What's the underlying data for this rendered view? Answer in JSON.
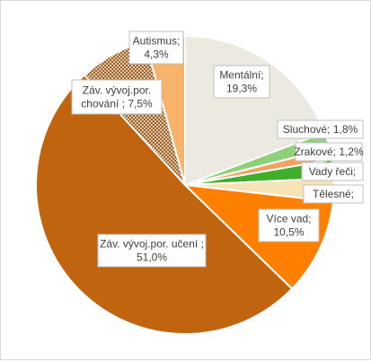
{
  "chart_data": {
    "type": "pie",
    "title": "",
    "slices": [
      {
        "category": "Mentální",
        "value": 19.3,
        "label_lines": [
          "Mentální;",
          "19,3%"
        ],
        "color": "#ece9e1"
      },
      {
        "category": "Sluchové",
        "value": 1.8,
        "label_lines": [
          "Sluchové; 1,8%"
        ],
        "color": "#8fd17a"
      },
      {
        "category": "Zrakové",
        "value": 1.2,
        "label_lines": [
          "Zrakové; 1,2%"
        ],
        "color": "#f4a261"
      },
      {
        "category": "Vady řeči",
        "value": 2.0,
        "label_lines": [
          "Vady řeči;"
        ],
        "color": "#3fae2a"
      },
      {
        "category": "Tělesné",
        "value": 2.5,
        "label_lines": [
          "Tělesné;"
        ],
        "color": "#f7e3b5"
      },
      {
        "category": "Více vad",
        "value": 10.5,
        "label_lines": [
          "Více vad;",
          "10,5%"
        ],
        "color": "#ff8000"
      },
      {
        "category": "Záv. vývoj.por. učení",
        "value": 51.0,
        "label_lines": [
          "Záv. vývoj.por. učení ;",
          "51,0%"
        ],
        "color": "#c06410"
      },
      {
        "category": "Záv. vývoj.por. chování",
        "value": 7.5,
        "label_lines": [
          "Záv. vývoj.por.",
          "chování ; 7,5%"
        ],
        "color": "#b36a2a",
        "pattern": "crosshatch"
      },
      {
        "category": "Autismus",
        "value": 4.3,
        "label_lines": [
          "Autismus;",
          "4,3%"
        ],
        "color": "#f7b26b"
      }
    ],
    "legend": "none",
    "data_labels": "category; percentage"
  }
}
